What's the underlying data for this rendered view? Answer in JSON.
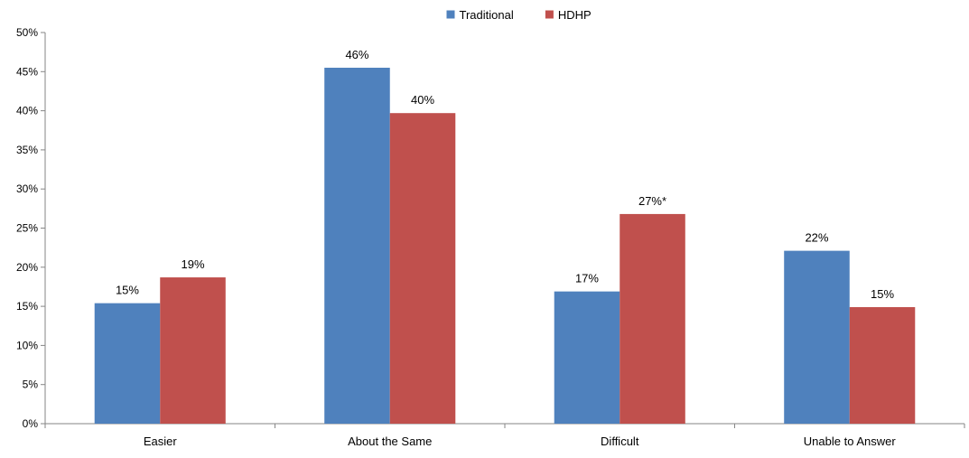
{
  "chart_data": {
    "type": "bar",
    "title": "",
    "xlabel": "",
    "ylabel": "",
    "categories": [
      "Easier",
      "About the Same",
      "Difficult",
      "Unable to Answer"
    ],
    "series": [
      {
        "name": "Traditional",
        "color": "#4f81bd",
        "values": [
          15.4,
          45.5,
          16.9,
          22.1
        ],
        "labels": [
          "15%",
          "46%",
          "17%",
          "22%"
        ]
      },
      {
        "name": "HDHP",
        "color": "#c0504d",
        "values": [
          18.7,
          39.7,
          26.8,
          14.9
        ],
        "labels": [
          "19%",
          "40%",
          "27%*",
          "15%"
        ]
      }
    ],
    "ylim": [
      0,
      50
    ],
    "yticks": [
      "0%",
      "5%",
      "10%",
      "15%",
      "20%",
      "25%",
      "30%",
      "35%",
      "40%",
      "45%",
      "50%"
    ],
    "grid": false,
    "legend": "top-center"
  }
}
